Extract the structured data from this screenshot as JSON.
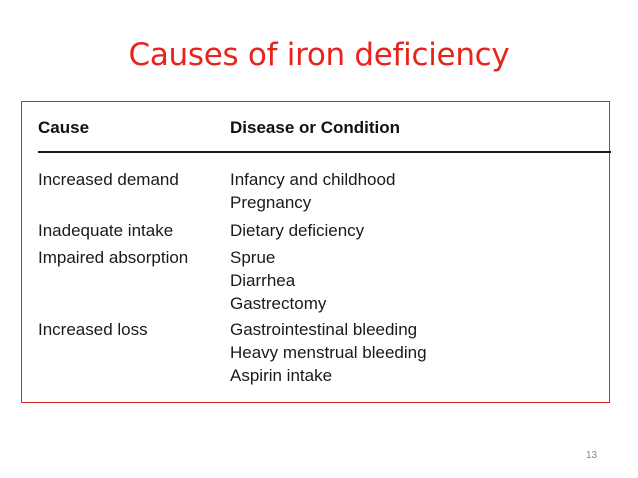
{
  "slide": {
    "title": "Causes of iron deficiency",
    "page_number": "13"
  },
  "table": {
    "headers": {
      "cause": "Cause",
      "condition": "Disease or Condition"
    },
    "rows": [
      {
        "cause": "Increased demand",
        "conditions": [
          "Infancy and childhood",
          "Pregnancy"
        ]
      },
      {
        "cause": "Inadequate intake",
        "conditions": [
          "Dietary deficiency"
        ]
      },
      {
        "cause": "Impaired absorption",
        "conditions": [
          "Sprue",
          "Diarrhea",
          "Gastrectomy"
        ]
      },
      {
        "cause": "Increased loss",
        "conditions": [
          "Gastrointestinal bleeding",
          "Heavy menstrual bleeding",
          "Aspirin intake"
        ]
      }
    ]
  }
}
